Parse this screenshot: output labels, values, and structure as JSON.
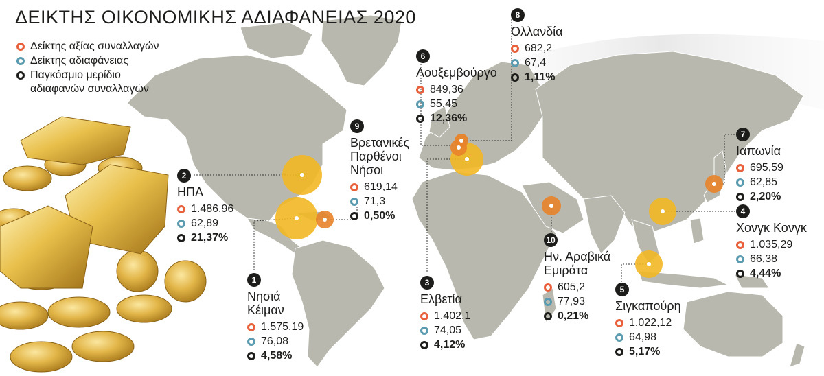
{
  "title": "ΔΕΙΚΤΗΣ ΟΙΚΟΝΟΜΙΚΗΣ ΑΔΙΑΦΑΝΕΙΑΣ 2020",
  "legend": {
    "items": [
      {
        "label": "Δείκτης αξίας συναλλαγών",
        "color": "#e8603c"
      },
      {
        "label": "Δείκτης αδιαφάνειας",
        "color": "#5b9bb0"
      },
      {
        "label": "Παγκόσμιο μερίδιο αδιαφανών συναλλαγών",
        "color": "#1d1d1b"
      }
    ]
  },
  "countries": [
    {
      "rank": "1",
      "name": "Νησιά Κέιμαν",
      "value": "1.575,19",
      "opacity": "76,08",
      "share": "4,58%"
    },
    {
      "rank": "2",
      "name": "ΗΠΑ",
      "value": "1.486,96",
      "opacity": "62,89",
      "share": "21,37%"
    },
    {
      "rank": "3",
      "name": "Ελβετία",
      "value": "1.402,1",
      "opacity": "74,05",
      "share": "4,12%"
    },
    {
      "rank": "4",
      "name": "Χονγκ Κονγκ",
      "value": "1.035,29",
      "opacity": "66,38",
      "share": "4,44%"
    },
    {
      "rank": "5",
      "name": "Σιγκαπούρη",
      "value": "1.022,12",
      "opacity": "64,98",
      "share": "5,17%"
    },
    {
      "rank": "6",
      "name": "Λουξεμβούργο",
      "value": "849,36",
      "opacity": "55,45",
      "share": "12,36%"
    },
    {
      "rank": "7",
      "name": "Ιαπωνία",
      "value": "695,59",
      "opacity": "62,85",
      "share": "2,20%"
    },
    {
      "rank": "8",
      "name": "Ολλανδία",
      "value": "682,2",
      "opacity": "67,4",
      "share": "1,11%"
    },
    {
      "rank": "9",
      "name": "Βρετανικές Παρθένοι Νήσοι",
      "value": "619,14",
      "opacity": "71,3",
      "share": "0,50%"
    },
    {
      "rank": "10",
      "name": "Ην. Αραβικά Εμιράτα",
      "value": "605,2",
      "opacity": "77,93",
      "share": "0,21%"
    }
  ],
  "colors": {
    "land": "#b8b8ae",
    "big_bubble": "#f2b724",
    "small_bubble": "#e8832a",
    "value_ring": "#e8603c",
    "opacity_ring": "#5b9bb0",
    "share_ring": "#1d1d1b"
  }
}
